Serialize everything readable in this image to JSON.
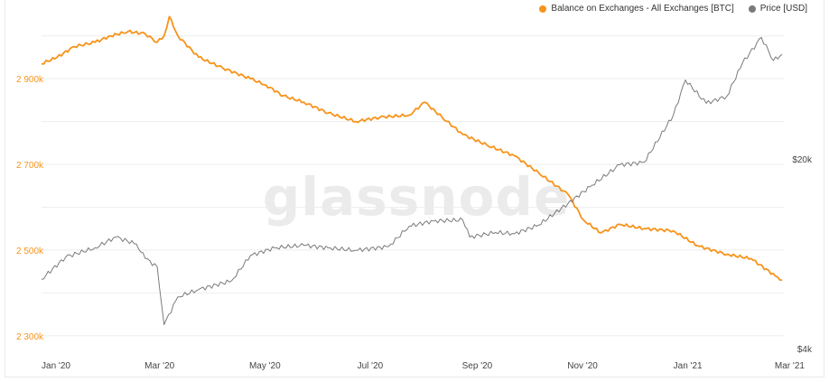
{
  "chart_data": {
    "type": "line",
    "title": "",
    "watermark": "glassnode",
    "legend_position": "top-right",
    "grid": true,
    "x_ticks": [
      "Jan '20",
      "Mar '20",
      "May '20",
      "Jul '20",
      "Sep '20",
      "Nov '20",
      "Jan '21",
      "Mar '21"
    ],
    "y_left": {
      "ticks": [
        "2 300k",
        "2 500k",
        "2 700k",
        "2 900k"
      ],
      "tick_values": [
        2300000,
        2500000,
        2700000,
        2900000
      ],
      "range": [
        2270000,
        3050000
      ]
    },
    "y_right": {
      "scale": "log",
      "ticks": [
        "$4k",
        "$20k"
      ],
      "tick_values": [
        4000,
        20000
      ],
      "range": [
        4000,
        68000
      ]
    },
    "series": [
      {
        "name": "Balance on Exchanges - All Exchanges [BTC]",
        "color": "#f7931a",
        "axis": "left",
        "points": [
          [
            "2020-01-01",
            2935000
          ],
          [
            "2020-01-10",
            2950000
          ],
          [
            "2020-01-20",
            2975000
          ],
          [
            "2020-02-01",
            2985000
          ],
          [
            "2020-02-10",
            3000000
          ],
          [
            "2020-02-20",
            3010000
          ],
          [
            "2020-03-01",
            3005000
          ],
          [
            "2020-03-08",
            2985000
          ],
          [
            "2020-03-12",
            3000000
          ],
          [
            "2020-03-15",
            3045000
          ],
          [
            "2020-03-20",
            3000000
          ],
          [
            "2020-04-01",
            2950000
          ],
          [
            "2020-04-15",
            2925000
          ],
          [
            "2020-05-01",
            2900000
          ],
          [
            "2020-05-10",
            2885000
          ],
          [
            "2020-05-20",
            2860000
          ],
          [
            "2020-06-01",
            2845000
          ],
          [
            "2020-06-15",
            2820000
          ],
          [
            "2020-07-01",
            2800000
          ],
          [
            "2020-07-15",
            2810000
          ],
          [
            "2020-08-01",
            2815000
          ],
          [
            "2020-08-10",
            2845000
          ],
          [
            "2020-08-20",
            2810000
          ],
          [
            "2020-09-01",
            2770000
          ],
          [
            "2020-09-15",
            2745000
          ],
          [
            "2020-10-01",
            2720000
          ],
          [
            "2020-10-15",
            2680000
          ],
          [
            "2020-11-01",
            2630000
          ],
          [
            "2020-11-10",
            2570000
          ],
          [
            "2020-11-20",
            2540000
          ],
          [
            "2020-12-01",
            2560000
          ],
          [
            "2020-12-15",
            2550000
          ],
          [
            "2021-01-01",
            2545000
          ],
          [
            "2021-01-15",
            2510000
          ],
          [
            "2021-02-01",
            2490000
          ],
          [
            "2021-02-15",
            2480000
          ],
          [
            "2021-03-01",
            2440000
          ],
          [
            "2021-03-05",
            2430000
          ]
        ]
      },
      {
        "name": "Price [USD]",
        "color": "#7a7a7a",
        "axis": "right",
        "points": [
          [
            "2020-01-01",
            7200
          ],
          [
            "2020-01-15",
            8700
          ],
          [
            "2020-02-01",
            9400
          ],
          [
            "2020-02-13",
            10300
          ],
          [
            "2020-02-25",
            9700
          ],
          [
            "2020-03-01",
            8600
          ],
          [
            "2020-03-08",
            8000
          ],
          [
            "2020-03-12",
            4900
          ],
          [
            "2020-03-20",
            6200
          ],
          [
            "2020-04-01",
            6600
          ],
          [
            "2020-04-20",
            7100
          ],
          [
            "2020-05-01",
            8800
          ],
          [
            "2020-05-15",
            9400
          ],
          [
            "2020-06-01",
            9600
          ],
          [
            "2020-06-15",
            9400
          ],
          [
            "2020-07-01",
            9200
          ],
          [
            "2020-07-20",
            9500
          ],
          [
            "2020-08-01",
            11300
          ],
          [
            "2020-08-15",
            11800
          ],
          [
            "2020-09-01",
            11900
          ],
          [
            "2020-09-05",
            10300
          ],
          [
            "2020-09-20",
            10700
          ],
          [
            "2020-10-01",
            10600
          ],
          [
            "2020-10-15",
            11400
          ],
          [
            "2020-11-01",
            13700
          ],
          [
            "2020-11-15",
            16000
          ],
          [
            "2020-12-01",
            19000
          ],
          [
            "2020-12-15",
            19400
          ],
          [
            "2021-01-01",
            29000
          ],
          [
            "2021-01-08",
            39000
          ],
          [
            "2021-01-20",
            32000
          ],
          [
            "2021-02-01",
            34000
          ],
          [
            "2021-02-10",
            45000
          ],
          [
            "2021-02-21",
            56000
          ],
          [
            "2021-02-28",
            46000
          ],
          [
            "2021-03-05",
            48500
          ]
        ]
      }
    ]
  }
}
